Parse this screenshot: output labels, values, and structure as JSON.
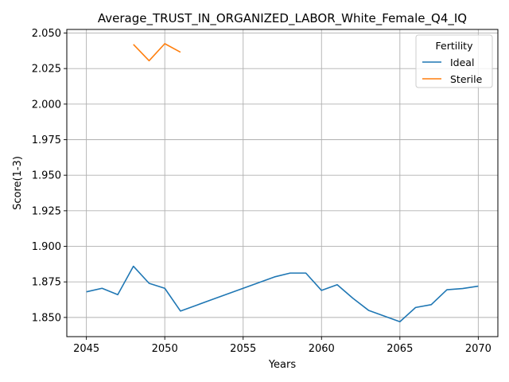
{
  "chart_data": {
    "type": "line",
    "title": "Average_TRUST_IN_ORGANIZED_LABOR_White_Female_Q4_IQ",
    "xlabel": "Years",
    "ylabel": "Score(1-3)",
    "xlim": [
      2043.75,
      2071.25
    ],
    "ylim": [
      1.8365,
      2.0525
    ],
    "xticks": [
      2045,
      2050,
      2055,
      2060,
      2065,
      2070
    ],
    "yticks": [
      1.85,
      1.875,
      1.9,
      1.925,
      1.95,
      1.975,
      2.0,
      2.025,
      2.05
    ],
    "xtick_labels": [
      "2045",
      "2050",
      "2055",
      "2060",
      "2065",
      "2070"
    ],
    "ytick_labels": [
      "1.850",
      "1.875",
      "1.900",
      "1.925",
      "1.950",
      "1.975",
      "2.000",
      "2.025",
      "2.050"
    ],
    "grid": true,
    "legend": {
      "title": "Fertility",
      "placement": "top-right"
    },
    "series": [
      {
        "name": "Ideal",
        "color": "#1f77b4",
        "x": [
          2045,
          2046,
          2047,
          2048,
          2049,
          2050,
          2051,
          2052,
          2053,
          2054,
          2055,
          2056,
          2057,
          2058,
          2059,
          2060,
          2061,
          2062,
          2063,
          2064,
          2065,
          2066,
          2067,
          2068,
          2069,
          2070
        ],
        "y": [
          1.868,
          1.8705,
          1.866,
          1.886,
          1.874,
          1.8705,
          1.8545,
          1.8585,
          1.8625,
          1.8665,
          1.8705,
          1.8745,
          1.8785,
          1.8812,
          1.8812,
          1.869,
          1.873,
          1.8635,
          1.855,
          1.851,
          1.847,
          1.857,
          1.859,
          1.8695,
          1.8703,
          1.872
        ]
      },
      {
        "name": "Sterile",
        "color": "#ff7f0e",
        "x": [
          2048,
          2049,
          2050,
          2051
        ],
        "y": [
          2.042,
          2.0305,
          2.0425,
          2.0365
        ]
      }
    ]
  }
}
